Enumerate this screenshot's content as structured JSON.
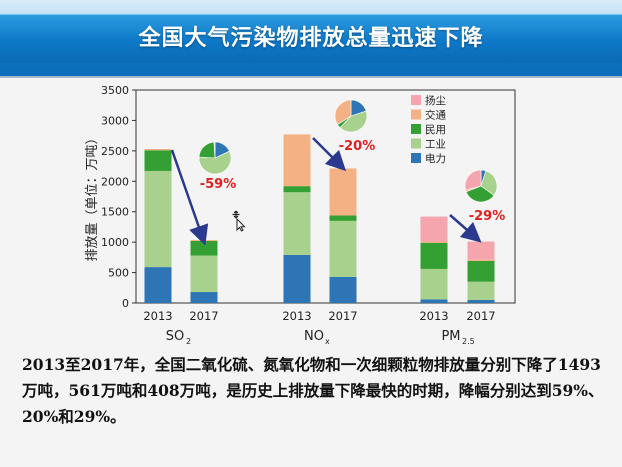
{
  "header": {
    "title": "全国大气污染物排放总量迅速下降"
  },
  "chart_data": {
    "type": "bar",
    "stacked": true,
    "ylabel": "排放量（单位：万吨）",
    "ylim": [
      0,
      3500
    ],
    "yticks": [
      0,
      500,
      1000,
      1500,
      2000,
      2500,
      3000,
      3500
    ],
    "grid": false,
    "legend_position": "top-right",
    "legend": [
      "扬尘",
      "交通",
      "民用",
      "工业",
      "电力"
    ],
    "colors": {
      "电力": "#2e75b6",
      "工业": "#a9d18e",
      "民用": "#34a033",
      "交通": "#f4b183",
      "扬尘": "#f4a5ad"
    },
    "groups": [
      {
        "label": "SO",
        "sub": "2",
        "change": "-59%",
        "bars": [
          {
            "year": "2013",
            "values": {
              "电力": 590,
              "工业": 1580,
              "民用": 340,
              "交通": 20,
              "扬尘": 0
            }
          },
          {
            "year": "2017",
            "values": {
              "电力": 180,
              "工业": 600,
              "民用": 240,
              "交通": 15,
              "扬尘": 0
            }
          }
        ]
      },
      {
        "label": "NO",
        "sub": "x",
        "change": "-20%",
        "bars": [
          {
            "year": "2013",
            "values": {
              "电力": 790,
              "工业": 1030,
              "民用": 100,
              "交通": 850,
              "扬尘": 0
            }
          },
          {
            "year": "2017",
            "values": {
              "电力": 430,
              "工业": 920,
              "民用": 90,
              "交通": 770,
              "扬尘": 0
            }
          }
        ]
      },
      {
        "label": "PM",
        "sub": "2.5",
        "change": "-29%",
        "bars": [
          {
            "year": "2013",
            "values": {
              "电力": 60,
              "工业": 500,
              "民用": 430,
              "交通": 20,
              "扬尘": 410
            }
          },
          {
            "year": "2017",
            "values": {
              "电力": 50,
              "工业": 300,
              "民用": 340,
              "交通": 20,
              "扬尘": 300
            }
          }
        ]
      }
    ],
    "pies": [
      {
        "group": "SO2",
        "year": "2017",
        "values": {
          "电力": 18,
          "工业": 58,
          "民用": 23,
          "交通": 1,
          "扬尘": 0
        }
      },
      {
        "group": "NOx",
        "year": "2017",
        "values": {
          "电力": 20,
          "工业": 42,
          "民用": 4,
          "交通": 34,
          "扬尘": 0
        }
      },
      {
        "group": "PM2.5",
        "year": "2017",
        "values": {
          "电力": 5,
          "工业": 30,
          "民用": 34,
          "交通": 2,
          "扬尘": 29
        }
      }
    ]
  },
  "caption": {
    "text": "2013至2017年，全国二氧化硫、氮氧化物和一次细颗粒物排放量分别下降了1493万吨，561万吨和408万吨，是历史上排放量下降最快的时期，降幅分别达到59%、20%和29%。"
  }
}
